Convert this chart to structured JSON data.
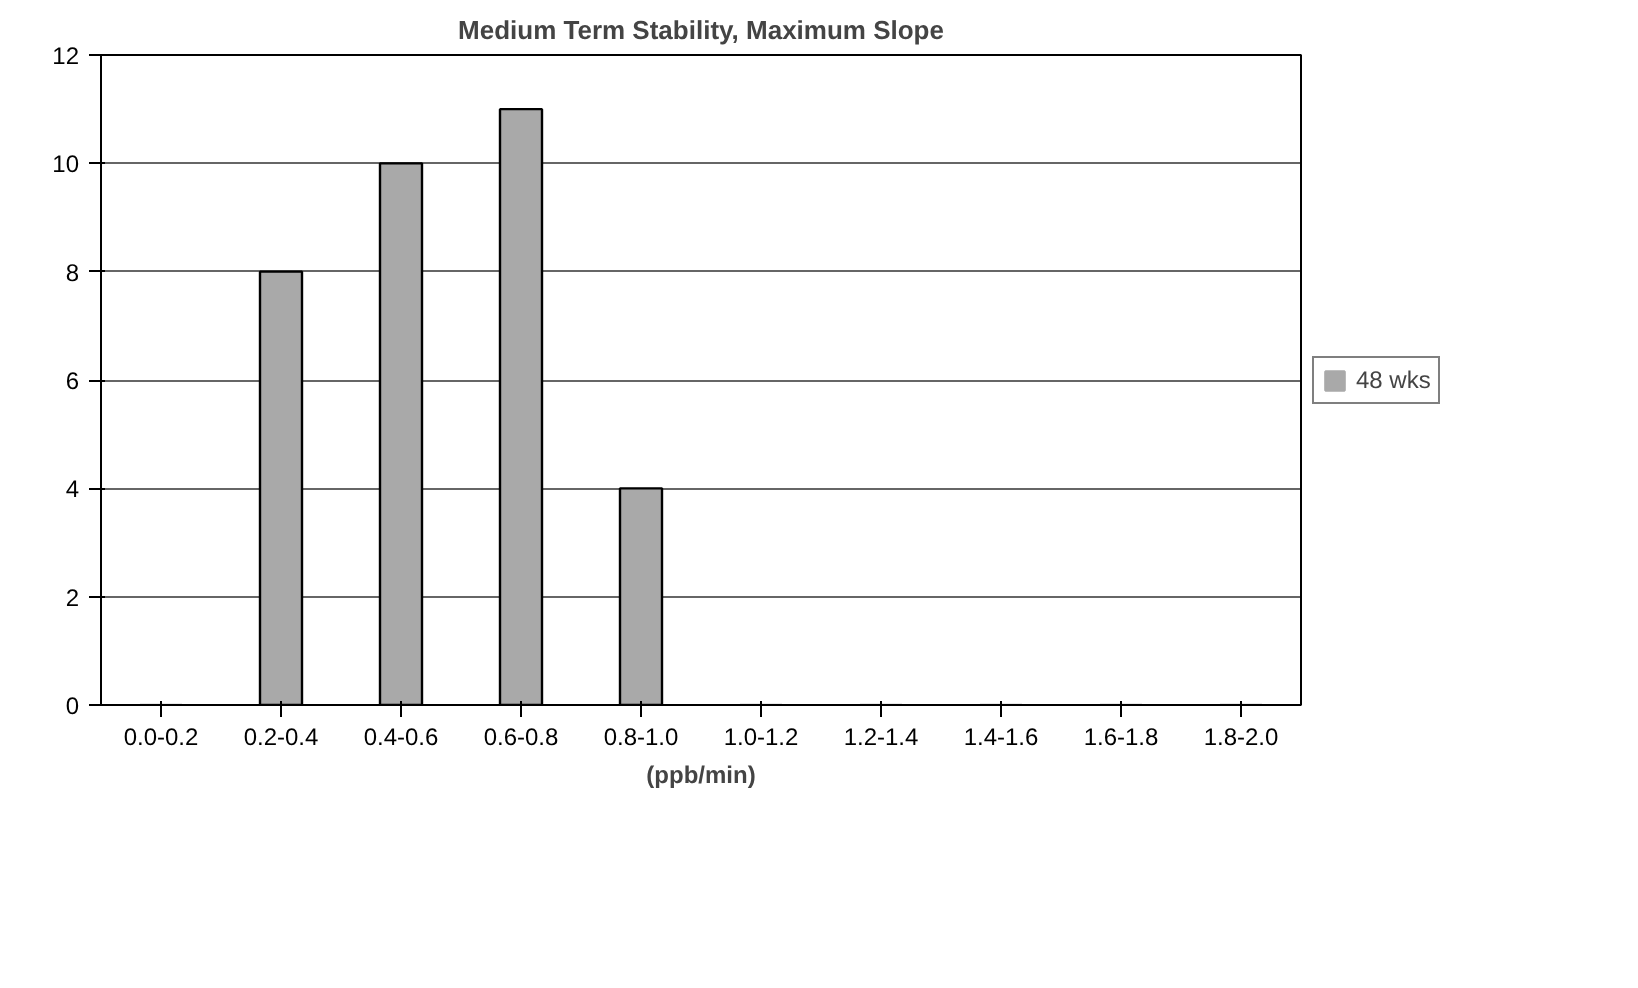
{
  "chart_data": {
    "type": "bar",
    "title": "Medium Term Stability, Maximum Slope",
    "xlabel": "(ppb/min)",
    "categories": [
      "0.0-0.2",
      "0.2-0.4",
      "0.4-0.6",
      "0.6-0.8",
      "0.8-1.0",
      "1.0-1.2",
      "1.2-1.4",
      "1.4-1.6",
      "1.6-1.8",
      "1.8-2.0"
    ],
    "series": [
      {
        "name": "48 wks",
        "color": "#a9a9a9",
        "values": [
          0,
          8,
          10,
          11,
          4,
          0,
          0,
          0,
          0,
          0
        ]
      }
    ],
    "ylim": [
      0,
      12
    ],
    "yticks": [
      0,
      2,
      4,
      6,
      8,
      10,
      12
    ],
    "grid": "y",
    "legend": "right"
  }
}
